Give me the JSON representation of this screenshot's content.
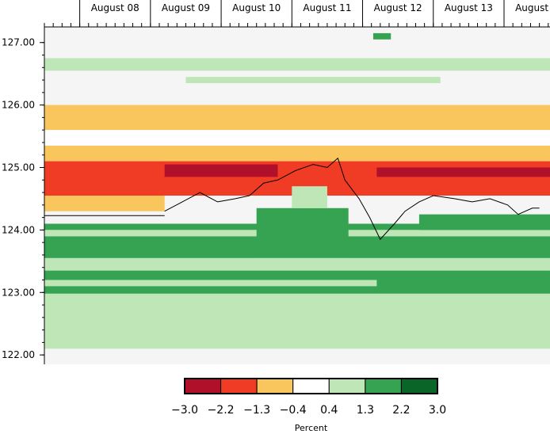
{
  "chart_data": {
    "type": "heatmap",
    "x_tick_labels": [
      "August 08",
      "August 09",
      "August 10",
      "August 11",
      "August 12",
      "August 13",
      "August 14",
      "August"
    ],
    "y_tick_labels": [
      "127.00",
      "126.00",
      "125.00",
      "124.00",
      "123.00",
      "122.00"
    ],
    "y_ticks": [
      127.0,
      126.0,
      125.0,
      124.0,
      123.0,
      122.0
    ],
    "ylim": [
      121.85,
      127.25
    ],
    "x_day_range": [
      7.3,
      14.45
    ],
    "legend": {
      "title": "Percent",
      "breaks": [
        "-3.0",
        "-2.2",
        "-1.3",
        "-0.4",
        "0.4",
        "1.3",
        "2.2",
        "3.0"
      ],
      "colors": [
        "#b0102a",
        "#f03c24",
        "#f8c65c",
        "#ffffff",
        "#bfe6b6",
        "#35a352",
        "#0a6628"
      ]
    },
    "background_color": "#f4f5f4",
    "bands": [
      {
        "y0": 125.6,
        "y1": 126.0,
        "x0": 7.3,
        "x1": 14.45,
        "color": "#f8c65c"
      },
      {
        "y0": 125.35,
        "y1": 125.6,
        "x0": 7.3,
        "x1": 14.45,
        "color": "#ffffff"
      },
      {
        "y0": 125.1,
        "y1": 125.35,
        "x0": 7.3,
        "x1": 14.45,
        "color": "#f8c65c"
      },
      {
        "y0": 124.55,
        "y1": 125.1,
        "x0": 7.3,
        "x1": 14.45,
        "color": "#f03c24"
      },
      {
        "y0": 124.3,
        "y1": 124.55,
        "x0": 7.3,
        "x1": 9.0,
        "color": "#f8c65c"
      },
      {
        "y0": 124.85,
        "y1": 125.05,
        "x0": 9.0,
        "x1": 10.6,
        "color": "#b0102a"
      },
      {
        "y0": 124.85,
        "y1": 125.0,
        "x0": 12.0,
        "x1": 14.45,
        "color": "#b0102a"
      },
      {
        "y0": 126.55,
        "y1": 126.75,
        "x0": 7.3,
        "x1": 14.45,
        "color": "#bfe6b6"
      },
      {
        "y0": 126.35,
        "y1": 126.45,
        "x0": 9.3,
        "x1": 12.9,
        "color": "#bfe6b6"
      },
      {
        "y0": 124.0,
        "y1": 124.1,
        "x0": 7.3,
        "x1": 14.45,
        "color": "#35a352"
      },
      {
        "y0": 123.55,
        "y1": 123.9,
        "x0": 7.3,
        "x1": 14.45,
        "color": "#35a352"
      },
      {
        "y0": 123.9,
        "y1": 124.0,
        "x0": 7.3,
        "x1": 14.45,
        "color": "#bfe6b6"
      },
      {
        "y0": 123.35,
        "y1": 123.55,
        "x0": 7.3,
        "x1": 14.45,
        "color": "#bfe6b6"
      },
      {
        "y0": 123.2,
        "y1": 123.35,
        "x0": 7.3,
        "x1": 14.45,
        "color": "#35a352"
      },
      {
        "y0": 123.1,
        "y1": 123.2,
        "x0": 7.3,
        "x1": 14.45,
        "color": "#bfe6b6"
      },
      {
        "y0": 122.98,
        "y1": 123.1,
        "x0": 7.3,
        "x1": 14.45,
        "color": "#35a352"
      },
      {
        "y0": 122.1,
        "y1": 122.98,
        "x0": 7.3,
        "x1": 14.45,
        "color": "#bfe6b6"
      },
      {
        "y0": 123.6,
        "y1": 124.35,
        "x0": 10.3,
        "x1": 11.6,
        "color": "#35a352"
      },
      {
        "y0": 124.35,
        "y1": 124.7,
        "x0": 10.8,
        "x1": 11.3,
        "color": "#bfe6b6"
      },
      {
        "y0": 124.0,
        "y1": 124.25,
        "x0": 12.6,
        "x1": 14.45,
        "color": "#35a352"
      },
      {
        "y0": 123.0,
        "y1": 123.3,
        "x0": 12.0,
        "x1": 14.45,
        "color": "#35a352"
      },
      {
        "y0": 127.05,
        "y1": 127.15,
        "x0": 11.95,
        "x1": 12.2,
        "color": "#35a352"
      }
    ],
    "price_line": [
      [
        9.0,
        124.3
      ],
      [
        9.25,
        124.45
      ],
      [
        9.5,
        124.6
      ],
      [
        9.75,
        124.45
      ],
      [
        10.0,
        124.5
      ],
      [
        10.2,
        124.55
      ],
      [
        10.4,
        124.75
      ],
      [
        10.6,
        124.8
      ],
      [
        10.85,
        124.95
      ],
      [
        11.1,
        125.05
      ],
      [
        11.3,
        125.0
      ],
      [
        11.45,
        125.15
      ],
      [
        11.55,
        124.8
      ],
      [
        11.75,
        124.5
      ],
      [
        11.9,
        124.2
      ],
      [
        12.05,
        123.85
      ],
      [
        12.25,
        124.1
      ],
      [
        12.4,
        124.3
      ],
      [
        12.6,
        124.45
      ],
      [
        12.8,
        124.55
      ],
      [
        13.1,
        124.5
      ],
      [
        13.35,
        124.45
      ],
      [
        13.6,
        124.5
      ],
      [
        13.85,
        124.4
      ],
      [
        14.0,
        124.25
      ],
      [
        14.2,
        124.35
      ],
      [
        14.3,
        124.35
      ]
    ]
  }
}
